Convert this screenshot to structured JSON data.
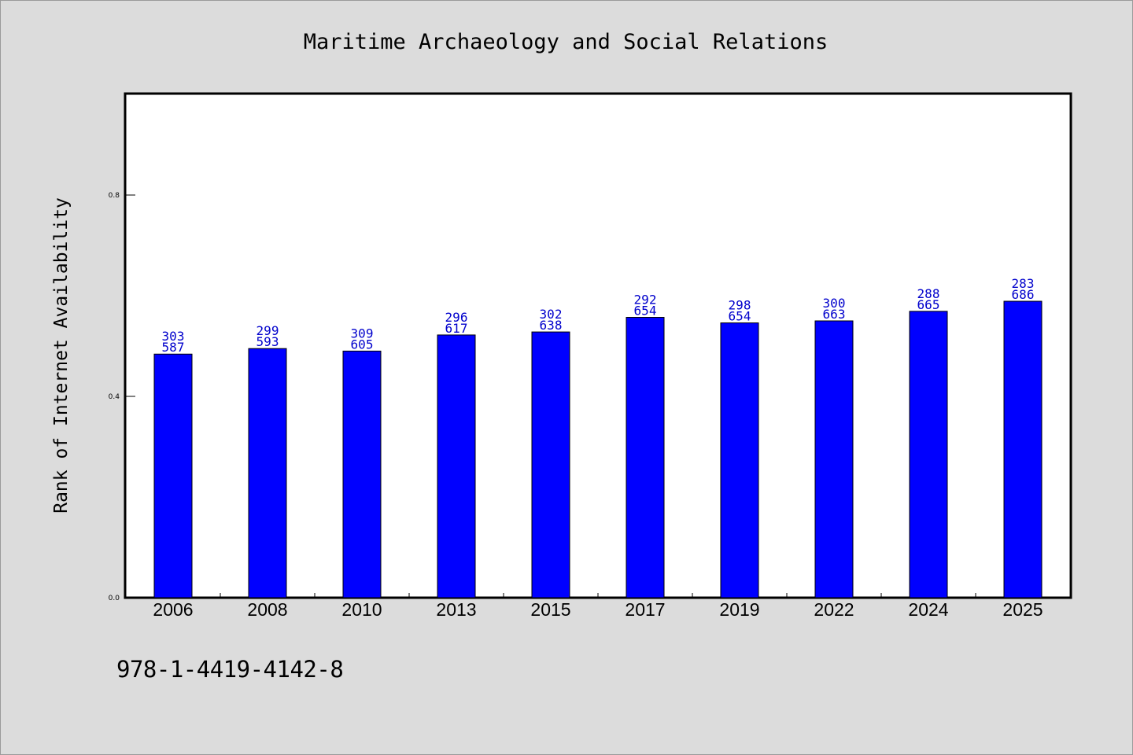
{
  "chart_data": {
    "type": "bar",
    "title": "Maritime Archaeology and Social Relations",
    "xlabel": "",
    "ylabel": "Rank of Internet Availability",
    "categories": [
      "2006",
      "2008",
      "2010",
      "2013",
      "2015",
      "2017",
      "2019",
      "2022",
      "2024",
      "2025"
    ],
    "values": [
      0.484,
      0.495,
      0.49,
      0.522,
      0.528,
      0.557,
      0.546,
      0.55,
      0.569,
      0.589
    ],
    "data_labels": [
      [
        "303",
        "587"
      ],
      [
        "299",
        "593"
      ],
      [
        "309",
        "605"
      ],
      [
        "296",
        "617"
      ],
      [
        "302",
        "638"
      ],
      [
        "292",
        "654"
      ],
      [
        "298",
        "654"
      ],
      [
        "300",
        "663"
      ],
      [
        "288",
        "665"
      ],
      [
        "283",
        "686"
      ]
    ],
    "yticks": [
      "0.0",
      "0.4",
      "0.8"
    ],
    "ytick_values": [
      0.0,
      0.4,
      0.8
    ],
    "ylim": [
      0,
      1.0
    ],
    "grid": false,
    "legend": "none",
    "colors": {
      "bar": "#0000ff",
      "bar_edge": "#000000",
      "label": "#0000cc",
      "background": "#dcdcdc",
      "plot_background": "#ffffff"
    }
  },
  "footnote": "978-1-4419-4142-8"
}
